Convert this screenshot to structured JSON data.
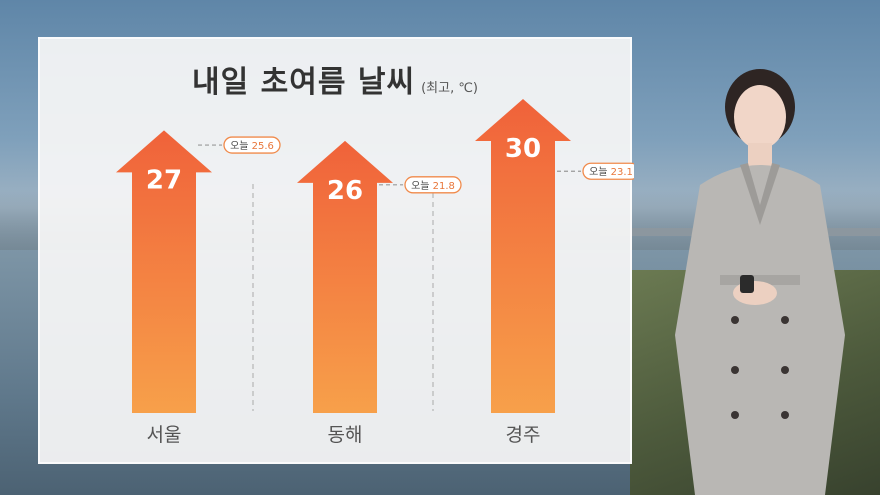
{
  "title": {
    "main": "내일 초여름 날씨",
    "sub": "(최고, ℃)"
  },
  "today_label": "오늘",
  "colors": {
    "arrow_top": "#f0623a",
    "arrow_bottom": "#f7a04a",
    "today_badge_border": "#f08a4b",
    "panel_bg": "#f3f3f3"
  },
  "chart_data": {
    "type": "bar",
    "title": "내일 초여름 날씨",
    "unit": "(최고, ℃)",
    "categories": [
      "서울",
      "동해",
      "경주"
    ],
    "series": [
      {
        "name": "내일",
        "values": [
          27,
          26,
          30
        ]
      },
      {
        "name": "오늘",
        "values": [
          25.6,
          21.8,
          23.1
        ]
      }
    ],
    "ylim": [
      0,
      30
    ]
  }
}
